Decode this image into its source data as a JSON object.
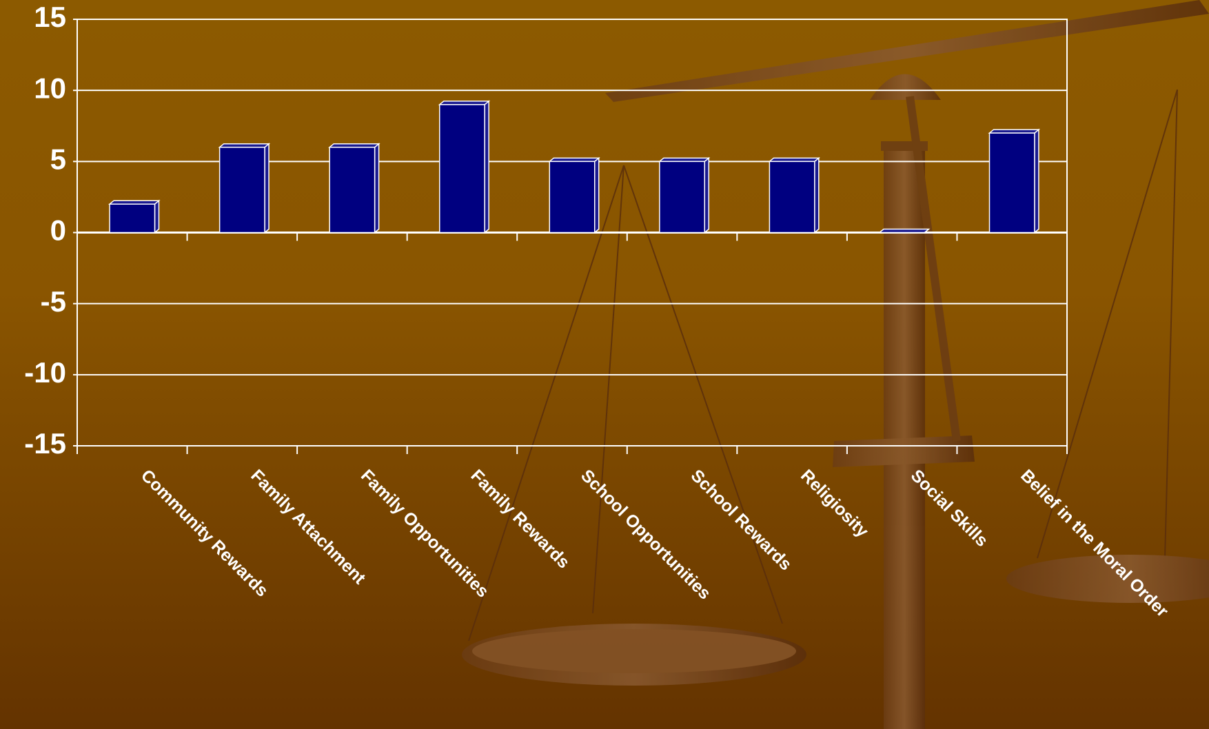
{
  "chart_data": {
    "type": "bar",
    "categories": [
      "Community Rewards",
      "Family Attachment",
      "Family Opportunities",
      "Family Rewards",
      "School Opportunities",
      "School Rewards",
      "Religiosity",
      "Social Skills",
      "Belief in the Moral Order"
    ],
    "values": [
      2,
      6,
      6,
      9,
      5,
      5,
      5,
      0,
      7
    ],
    "color": "#000080",
    "ylim": [
      -15,
      15
    ],
    "yticks": [
      -15,
      -10,
      -5,
      0,
      5,
      10,
      15
    ],
    "grid": true
  }
}
